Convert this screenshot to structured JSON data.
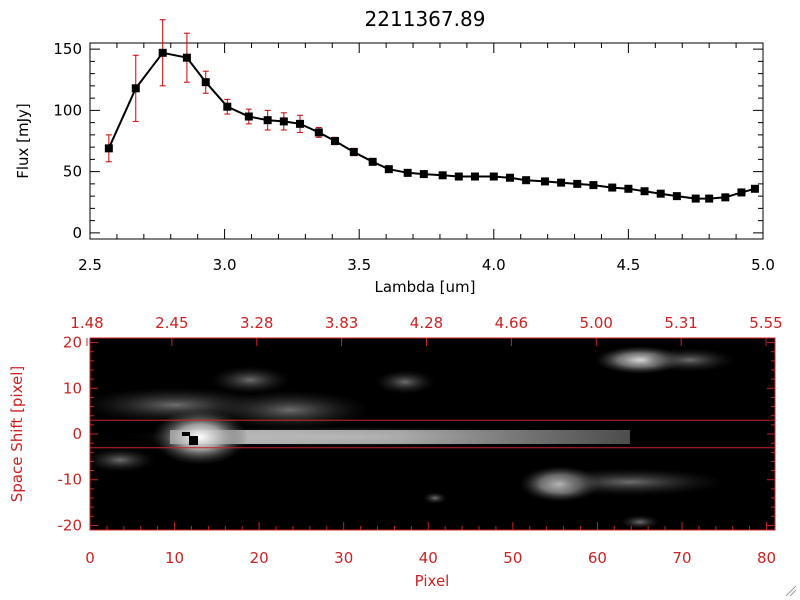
{
  "chart_data": [
    {
      "type": "line",
      "title": "2211367.89",
      "xlabel": "Lambda [um]",
      "ylabel": "Flux [mJy]",
      "xlim": [
        2.5,
        5.0
      ],
      "ylim": [
        -5,
        155
      ],
      "x_ticks": [
        "2.5",
        "3.0",
        "3.5",
        "4.0",
        "4.5",
        "5.0"
      ],
      "y_ticks": [
        "0",
        "50",
        "100",
        "150"
      ],
      "colors": {
        "line": "#000000",
        "marker": "#000000",
        "errorbar": "#cc0000"
      },
      "series": [
        {
          "x": [
            2.57,
            2.67,
            2.77,
            2.86,
            2.93,
            3.01,
            3.09,
            3.16,
            3.22,
            3.28,
            3.35,
            3.41,
            3.48,
            3.55,
            3.61,
            3.68,
            3.74,
            3.81,
            3.87,
            3.93,
            4.0,
            4.06,
            4.12,
            4.19,
            4.25,
            4.31,
            4.37,
            4.44,
            4.5,
            4.56,
            4.62,
            4.68,
            4.75,
            4.8,
            4.86,
            4.92,
            4.97
          ],
          "y": [
            69,
            118,
            147,
            143,
            123,
            103,
            95,
            92,
            91,
            89,
            82,
            75,
            66,
            58,
            52,
            49,
            48,
            47,
            46,
            46,
            46,
            45,
            43,
            42,
            41,
            40,
            39,
            37,
            36,
            34,
            32,
            30,
            28,
            28,
            29,
            33,
            36
          ],
          "yerr": [
            11,
            27,
            27,
            20,
            9,
            6,
            6,
            8,
            7,
            7,
            4,
            3,
            3,
            2,
            2,
            1,
            1,
            1,
            1,
            1,
            1,
            1,
            1,
            1,
            1,
            1,
            1,
            1,
            1,
            1,
            1,
            1,
            1,
            1,
            1,
            1,
            1
          ]
        }
      ]
    },
    {
      "type": "heatmap",
      "xlabel": "Pixel",
      "ylabel": "Space Shift [pixel]",
      "xlim": [
        0,
        81
      ],
      "ylim": [
        -21,
        21
      ],
      "x_ticks": [
        "0",
        "10",
        "20",
        "30",
        "40",
        "50",
        "60",
        "70",
        "80"
      ],
      "y_ticks": [
        "-20",
        "-10",
        "0",
        "10",
        "20"
      ],
      "top_ticks": [
        "1.48",
        "2.45",
        "3.28",
        "3.83",
        "4.28",
        "4.66",
        "5.00",
        "5.31",
        "5.55"
      ],
      "extraction_window": [
        -3,
        3
      ],
      "colors": {
        "axes": "#cc2222",
        "window": "#cc2222",
        "background": "#000000"
      }
    }
  ]
}
